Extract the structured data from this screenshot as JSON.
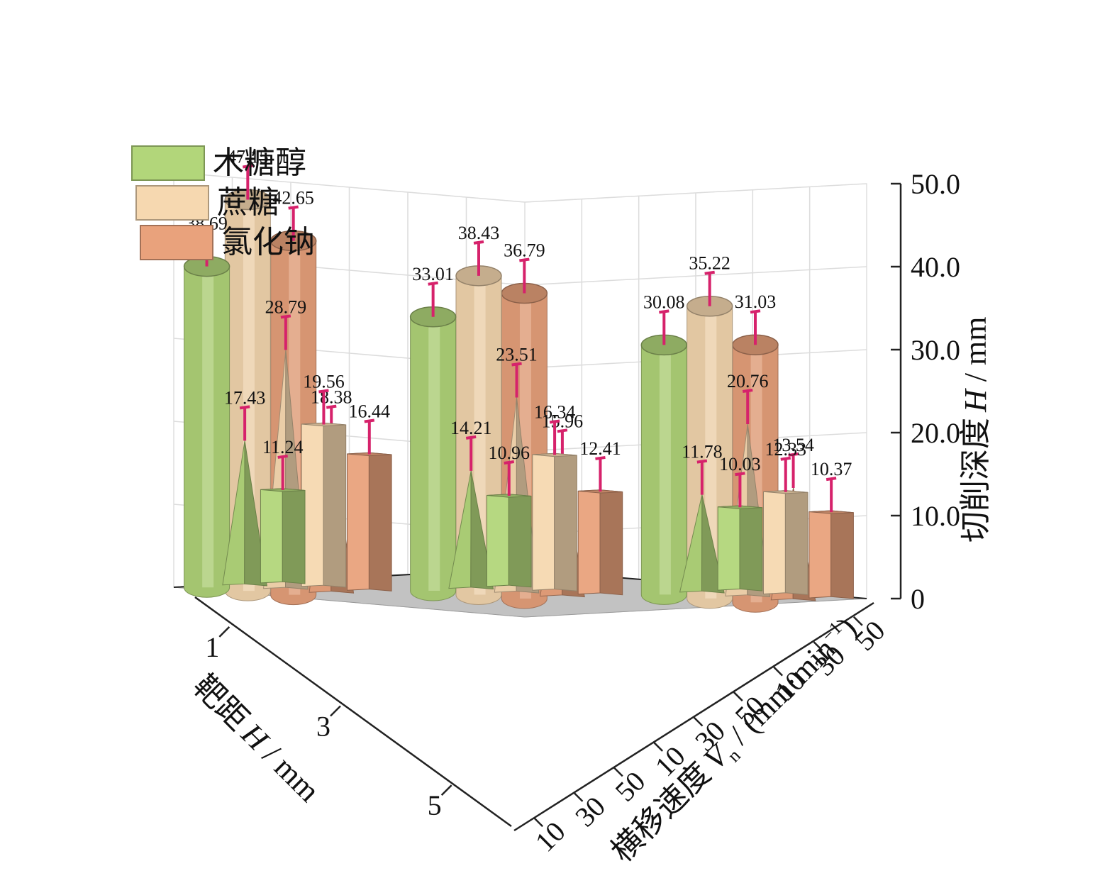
{
  "chart_data": {
    "type": "bar",
    "title": "",
    "zlabel_main": "切削深度",
    "zlabel_italic": "H",
    "zlabel_unit": " / mm",
    "xlabel_main": "靶距",
    "xlabel_italic": "H",
    "xlabel_unit": " / mm",
    "ylabel_main": "横移速度",
    "ylabel_italic": "V",
    "ylabel_sub": "n",
    "ylabel_unit": " / (mm·min",
    "ylabel_sup": "−1",
    "ylabel_close": ")",
    "target_distances": [
      "1",
      "3",
      "5"
    ],
    "traverse_speeds": [
      "10",
      "30",
      "50"
    ],
    "zlim": [
      0,
      50
    ],
    "zticks": [
      "0",
      "10.0",
      "20.0",
      "30.0",
      "40.0",
      "50.0"
    ],
    "legend": [
      {
        "name": "木糖醇",
        "color": "#b2d67a"
      },
      {
        "name": "蔗糖",
        "color": "#f6d8b0"
      },
      {
        "name": "氯化钠",
        "color": "#e9a27c"
      }
    ],
    "series": [
      {
        "name": "木糖醇",
        "color": "#b2d67a",
        "points": [
          {
            "distance": "1",
            "speed": "10",
            "value": 38.69
          },
          {
            "distance": "1",
            "speed": "30",
            "value": 17.43
          },
          {
            "distance": "1",
            "speed": "50",
            "value": 11.24
          },
          {
            "distance": "3",
            "speed": "10",
            "value": 33.01
          },
          {
            "distance": "3",
            "speed": "30",
            "value": 14.21
          },
          {
            "distance": "3",
            "speed": "50",
            "value": 10.96
          },
          {
            "distance": "5",
            "speed": "10",
            "value": 30.08
          },
          {
            "distance": "5",
            "speed": "30",
            "value": 11.78
          },
          {
            "distance": "5",
            "speed": "50",
            "value": 10.03
          }
        ]
      },
      {
        "name": "蔗糖",
        "color": "#f6d8b0",
        "points": [
          {
            "distance": "1",
            "speed": "10",
            "value": 47.15
          },
          {
            "distance": "1",
            "speed": "30",
            "value": 28.79
          },
          {
            "distance": "1",
            "speed": "50",
            "value": 19.56
          },
          {
            "distance": "3",
            "speed": "10",
            "value": 38.43
          },
          {
            "distance": "3",
            "speed": "30",
            "value": 23.51
          },
          {
            "distance": "3",
            "speed": "50",
            "value": 16.34
          },
          {
            "distance": "5",
            "speed": "10",
            "value": 35.22
          },
          {
            "distance": "5",
            "speed": "30",
            "value": 20.76
          },
          {
            "distance": "5",
            "speed": "50",
            "value": 12.33
          }
        ]
      },
      {
        "name": "氯化钠",
        "color": "#e9a27c",
        "points": [
          {
            "distance": "1",
            "speed": "10",
            "value": 42.65
          },
          {
            "distance": "1",
            "speed": "30",
            "value": 18.38
          },
          {
            "distance": "1",
            "speed": "50",
            "value": 16.44
          },
          {
            "distance": "3",
            "speed": "10",
            "value": 36.79
          },
          {
            "distance": "3",
            "speed": "30",
            "value": 15.96
          },
          {
            "distance": "3",
            "speed": "50",
            "value": 12.41
          },
          {
            "distance": "5",
            "speed": "10",
            "value": 31.03
          },
          {
            "distance": "5",
            "speed": "30",
            "value": 13.54
          },
          {
            "distance": "5",
            "speed": "50",
            "value": 10.37
          }
        ]
      }
    ]
  },
  "colors": {
    "floor": "#c2c2c2",
    "grid": "#dcdcdc",
    "axis": "#222222",
    "error_bar": "#d6226b"
  }
}
